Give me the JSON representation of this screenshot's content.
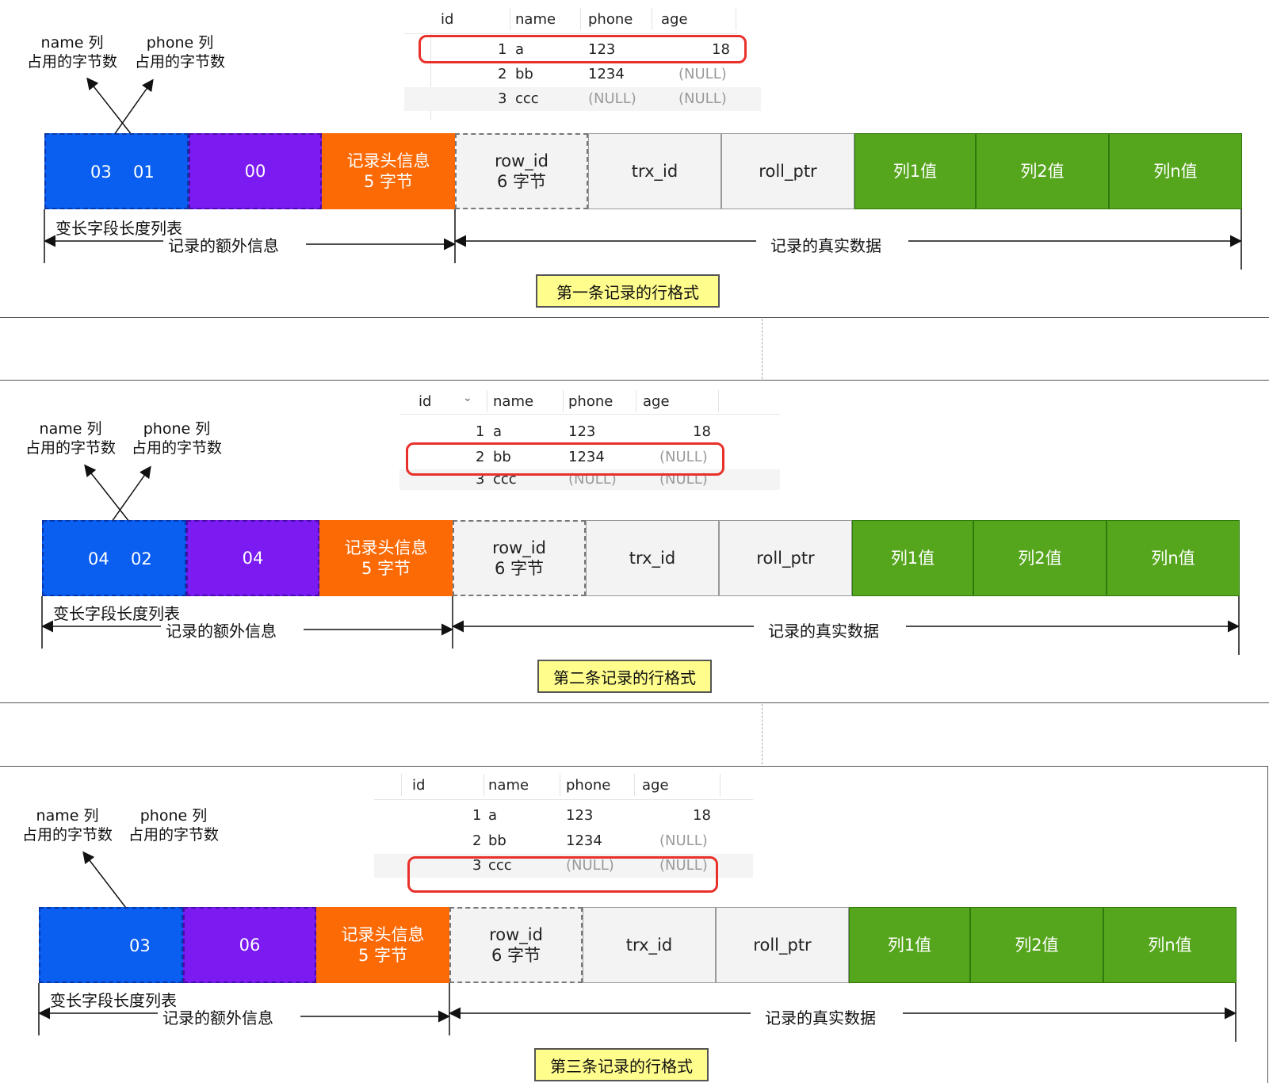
{
  "table": {
    "headers": [
      "id",
      "name",
      "phone",
      "age"
    ],
    "rows": [
      {
        "id": "1",
        "name": "a",
        "phone": "123",
        "age": "18"
      },
      {
        "id": "2",
        "name": "bb",
        "phone": "1234",
        "age": "(NULL)"
      },
      {
        "id": "3",
        "name": "ccc",
        "phone": "(NULL)",
        "age": "(NULL)"
      }
    ]
  },
  "annotations": {
    "name_col": "name 列",
    "phone_col": "phone 列",
    "bytes_used": "占用的字节数"
  },
  "cells": {
    "header_info": "记录头信息",
    "header_bytes": "5 字节",
    "row_id": "row_id",
    "row_id_bytes": "6 字节",
    "trx_id": "trx_id",
    "roll_ptr": "roll_ptr",
    "col1": "列1值",
    "col2": "列2值",
    "coln": "列n值"
  },
  "labels": {
    "var_len_list": "变长字段长度列表",
    "extra_info": "记录的额外信息",
    "real_data": "记录的真实数据"
  },
  "records": [
    {
      "title": "第一条记录的行格式",
      "varlen_a": "03",
      "varlen_b": "01",
      "null_list": "00",
      "highlight_row": 1
    },
    {
      "title": "第二条记录的行格式",
      "varlen_a": "04",
      "varlen_b": "02",
      "null_list": "04",
      "highlight_row": 2
    },
    {
      "title": "第三条记录的行格式",
      "varlen_a": "03",
      "varlen_b": "",
      "null_list": "06",
      "highlight_row": 3
    }
  ],
  "colors": {
    "blue": "#0a5ef0",
    "purple": "#7b1bf2",
    "orange": "#fb6a05",
    "green": "#55a51d",
    "highlight": "#e8312a",
    "title_bg": "#fffd8c"
  }
}
